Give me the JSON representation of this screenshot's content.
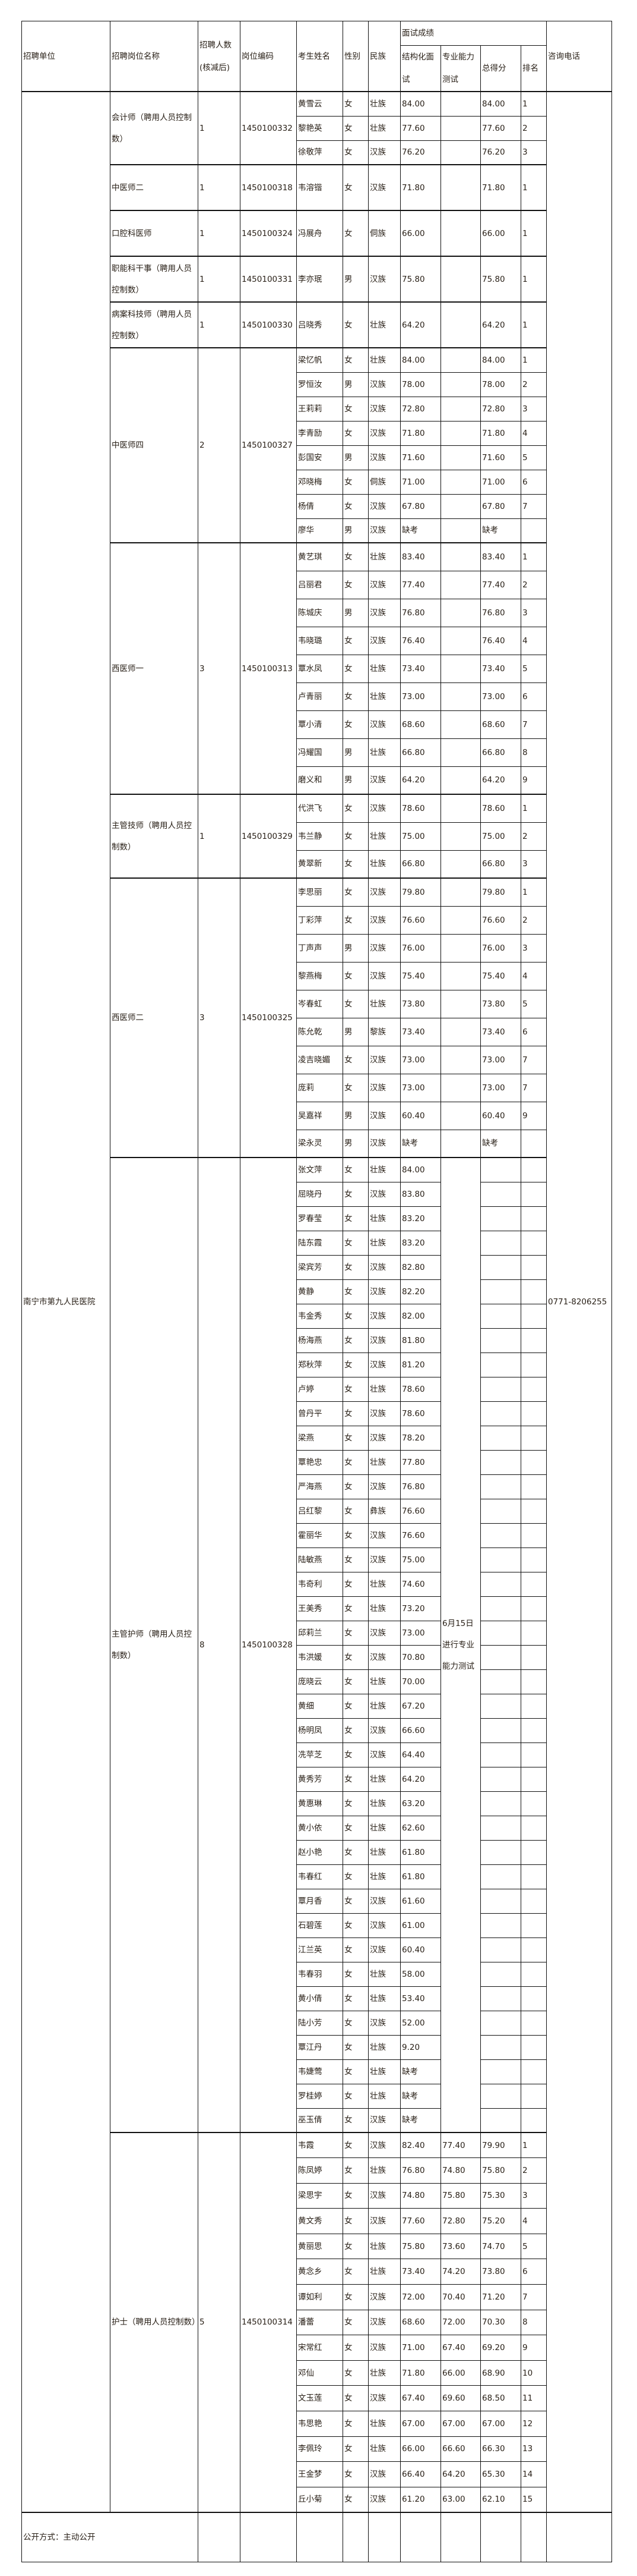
{
  "header": {
    "unit": "招聘单位",
    "position": "招聘岗位名称",
    "count": "招聘人数(核减后)",
    "code": "岗位编码",
    "name": "考生姓名",
    "gender": "性别",
    "ethnicity": "民族",
    "interview": "面试成绩",
    "structured": "结构化面试",
    "professional": "专业能力测试",
    "total": "总得分",
    "rank": "排名",
    "phone": "咨询电话"
  },
  "unit": "南宁市第九人民医院",
  "phone": "0771-8206255",
  "footer": "公开方式：主动公开",
  "groups": [
    {
      "position": "会计师（聘用人员控制数）",
      "count": "1",
      "code": "1450100332",
      "candidates": [
        [
          "黄雪云",
          "女",
          "壮族",
          "84.00",
          "",
          "84.00",
          "1"
        ],
        [
          "黎艳英",
          "女",
          "壮族",
          "77.60",
          "",
          "77.60",
          "2"
        ],
        [
          "徐敬萍",
          "女",
          "汉族",
          "76.20",
          "",
          "76.20",
          "3"
        ]
      ]
    },
    {
      "position": "中医师二",
      "count": "1",
      "code": "1450100318",
      "candidates": [
        [
          "韦溶锴",
          "女",
          "汉族",
          "71.80",
          "",
          "71.80",
          "1"
        ]
      ]
    },
    {
      "position": "口腔科医师",
      "count": "1",
      "code": "1450100324",
      "candidates": [
        [
          "冯展舟",
          "女",
          "侗族",
          "66.00",
          "",
          "66.00",
          "1"
        ]
      ]
    },
    {
      "position": "职能科干事（聘用人员控制数）",
      "count": "1",
      "code": "1450100331",
      "candidates": [
        [
          "李亦珉",
          "男",
          "汉族",
          "75.80",
          "",
          "75.80",
          "1"
        ]
      ]
    },
    {
      "position": "病案科技师（聘用人员控制数）",
      "count": "1",
      "code": "1450100330",
      "candidates": [
        [
          "吕晓秀",
          "女",
          "壮族",
          "64.20",
          "",
          "64.20",
          "1"
        ]
      ]
    },
    {
      "position": "中医师四",
      "count": "2",
      "code": "1450100327",
      "candidates": [
        [
          "梁忆帆",
          "女",
          "壮族",
          "84.00",
          "",
          "84.00",
          "1"
        ],
        [
          "罗恒汝",
          "男",
          "汉族",
          "78.00",
          "",
          "78.00",
          "2"
        ],
        [
          "王莉莉",
          "女",
          "汉族",
          "72.80",
          "",
          "72.80",
          "3"
        ],
        [
          "李青励",
          "女",
          "汉族",
          "71.80",
          "",
          "71.80",
          "4"
        ],
        [
          "彭国安",
          "男",
          "汉族",
          "71.60",
          "",
          "71.60",
          "5"
        ],
        [
          "邓晓梅",
          "女",
          "侗族",
          "71.00",
          "",
          "71.00",
          "6"
        ],
        [
          "杨倩",
          "女",
          "汉族",
          "67.80",
          "",
          "67.80",
          "7"
        ],
        [
          "廖华",
          "男",
          "汉族",
          "缺考",
          "",
          "缺考",
          ""
        ]
      ]
    },
    {
      "position": "西医师一",
      "count": "3",
      "code": "1450100313",
      "candidates": [
        [
          "黄艺琪",
          "女",
          "壮族",
          "83.40",
          "",
          "83.40",
          "1"
        ],
        [
          "吕丽君",
          "女",
          "汉族",
          "77.40",
          "",
          "77.40",
          "2"
        ],
        [
          "陈城庆",
          "男",
          "汉族",
          "76.80",
          "",
          "76.80",
          "3"
        ],
        [
          "韦晓璐",
          "女",
          "汉族",
          "76.40",
          "",
          "76.40",
          "4"
        ],
        [
          "覃水凤",
          "女",
          "壮族",
          "73.40",
          "",
          "73.40",
          "5"
        ],
        [
          "卢青丽",
          "女",
          "壮族",
          "73.00",
          "",
          "73.00",
          "6"
        ],
        [
          "覃小清",
          "女",
          "汉族",
          "68.60",
          "",
          "68.60",
          "7"
        ],
        [
          "冯耀国",
          "男",
          "壮族",
          "66.80",
          "",
          "66.80",
          "8"
        ],
        [
          "磨义和",
          "男",
          "汉族",
          "64.20",
          "",
          "64.20",
          "9"
        ]
      ]
    },
    {
      "position": "主管技师（聘用人员控制数）",
      "count": "1",
      "code": "1450100329",
      "candidates": [
        [
          "代洪飞",
          "女",
          "汉族",
          "78.60",
          "",
          "78.60",
          "1"
        ],
        [
          "韦兰静",
          "女",
          "壮族",
          "75.00",
          "",
          "75.00",
          "2"
        ],
        [
          "黄翠新",
          "女",
          "壮族",
          "66.80",
          "",
          "66.80",
          "3"
        ]
      ]
    },
    {
      "position": "西医师二",
      "count": "3",
      "code": "1450100325",
      "candidates": [
        [
          "李思丽",
          "女",
          "汉族",
          "79.80",
          "",
          "79.80",
          "1"
        ],
        [
          "丁彩萍",
          "女",
          "汉族",
          "76.60",
          "",
          "76.60",
          "2"
        ],
        [
          "丁声声",
          "男",
          "汉族",
          "76.00",
          "",
          "76.00",
          "3"
        ],
        [
          "黎燕梅",
          "女",
          "汉族",
          "75.40",
          "",
          "75.40",
          "4"
        ],
        [
          "岑春虹",
          "女",
          "壮族",
          "73.80",
          "",
          "73.80",
          "5"
        ],
        [
          "陈允乾",
          "男",
          "黎族",
          "73.40",
          "",
          "73.40",
          "6"
        ],
        [
          "凌吉晓媚",
          "女",
          "汉族",
          "73.00",
          "",
          "73.00",
          "7"
        ],
        [
          "庞莉",
          "女",
          "汉族",
          "73.00",
          "",
          "73.00",
          "7"
        ],
        [
          "吴嘉祥",
          "男",
          "汉族",
          "60.40",
          "",
          "60.40",
          "9"
        ],
        [
          "梁永灵",
          "男",
          "汉族",
          "缺考",
          "",
          "缺考",
          ""
        ]
      ]
    },
    {
      "position": "主管护师（聘用人员控制数）",
      "count": "8",
      "code": "1450100328",
      "professional_note": "6月15日进行专业能力测试",
      "candidates": [
        [
          "张文萍",
          "女",
          "壮族",
          "84.00"
        ],
        [
          "屈晓丹",
          "女",
          "汉族",
          "83.80"
        ],
        [
          "罗春莹",
          "女",
          "壮族",
          "83.20"
        ],
        [
          "陆东霞",
          "女",
          "壮族",
          "83.20"
        ],
        [
          "梁宾芳",
          "女",
          "汉族",
          "82.80"
        ],
        [
          "黄静",
          "女",
          "汉族",
          "82.20"
        ],
        [
          "韦金秀",
          "女",
          "汉族",
          "82.00"
        ],
        [
          "杨海燕",
          "女",
          "汉族",
          "81.80"
        ],
        [
          "郑秋萍",
          "女",
          "汉族",
          "81.20"
        ],
        [
          "卢婷",
          "女",
          "壮族",
          "78.60"
        ],
        [
          "曾丹平",
          "女",
          "汉族",
          "78.60"
        ],
        [
          "梁燕",
          "女",
          "汉族",
          "78.20"
        ],
        [
          "覃艳忠",
          "女",
          "壮族",
          "77.80"
        ],
        [
          "严海燕",
          "女",
          "汉族",
          "76.80"
        ],
        [
          "吕红黎",
          "女",
          "彝族",
          "76.60"
        ],
        [
          "霍丽华",
          "女",
          "汉族",
          "76.60"
        ],
        [
          "陆敏燕",
          "女",
          "汉族",
          "75.00"
        ],
        [
          "韦奇利",
          "女",
          "壮族",
          "74.60"
        ],
        [
          "王美秀",
          "女",
          "壮族",
          "73.20"
        ],
        [
          "邱莉兰",
          "女",
          "汉族",
          "73.00"
        ],
        [
          "韦洪媛",
          "女",
          "汉族",
          "70.80"
        ],
        [
          "庞晓云",
          "女",
          "壮族",
          "70.00"
        ],
        [
          "黄细",
          "女",
          "壮族",
          "67.20"
        ],
        [
          "杨明凤",
          "女",
          "汉族",
          "66.60"
        ],
        [
          "冼苹芝",
          "女",
          "汉族",
          "64.40"
        ],
        [
          "黄秀芳",
          "女",
          "壮族",
          "64.20"
        ],
        [
          "黄惠琳",
          "女",
          "壮族",
          "63.20"
        ],
        [
          "黄小依",
          "女",
          "壮族",
          "62.60"
        ],
        [
          "赵小艳",
          "女",
          "壮族",
          "61.80"
        ],
        [
          "韦春红",
          "女",
          "壮族",
          "61.80"
        ],
        [
          "覃月香",
          "女",
          "汉族",
          "61.60"
        ],
        [
          "石碧莲",
          "女",
          "汉族",
          "61.00"
        ],
        [
          "江兰英",
          "女",
          "汉族",
          "60.40"
        ],
        [
          "韦春羽",
          "女",
          "壮族",
          "58.00"
        ],
        [
          "黄小倩",
          "女",
          "壮族",
          "53.40"
        ],
        [
          "陆小芳",
          "女",
          "汉族",
          "52.00"
        ],
        [
          "覃江丹",
          "女",
          "壮族",
          "9.20"
        ],
        [
          "韦婕莺",
          "女",
          "壮族",
          "缺考"
        ],
        [
          "罗桂婷",
          "女",
          "壮族",
          "缺考"
        ],
        [
          "巫玉倩",
          "女",
          "汉族",
          "缺考"
        ]
      ]
    },
    {
      "position": "护士（聘用人员控制数）",
      "count": "5",
      "code": "1450100314",
      "candidates": [
        [
          "韦霞",
          "女",
          "汉族",
          "82.40",
          "77.40",
          "79.90",
          "1"
        ],
        [
          "陈凤婷",
          "女",
          "壮族",
          "76.80",
          "74.80",
          "75.80",
          "2"
        ],
        [
          "梁思宇",
          "女",
          "汉族",
          "74.80",
          "75.80",
          "75.30",
          "3"
        ],
        [
          "黄文秀",
          "女",
          "汉族",
          "77.60",
          "72.80",
          "75.20",
          "4"
        ],
        [
          "黄丽思",
          "女",
          "壮族",
          "75.80",
          "73.60",
          "74.70",
          "5"
        ],
        [
          "黄念乡",
          "女",
          "壮族",
          "73.40",
          "74.20",
          "73.80",
          "6"
        ],
        [
          "谭如利",
          "女",
          "汉族",
          "72.00",
          "70.40",
          "71.20",
          "7"
        ],
        [
          "潘蕾",
          "女",
          "汉族",
          "68.60",
          "72.00",
          "70.30",
          "8"
        ],
        [
          "宋常红",
          "女",
          "汉族",
          "71.00",
          "67.40",
          "69.20",
          "9"
        ],
        [
          "邓仙",
          "女",
          "壮族",
          "71.80",
          "66.00",
          "68.90",
          "10"
        ],
        [
          "文玉莲",
          "女",
          "汉族",
          "67.40",
          "69.60",
          "68.50",
          "11"
        ],
        [
          "韦思艳",
          "女",
          "壮族",
          "67.00",
          "67.00",
          "67.00",
          "12"
        ],
        [
          "李佩玲",
          "女",
          "壮族",
          "66.00",
          "66.60",
          "66.30",
          "13"
        ],
        [
          "王金梦",
          "女",
          "汉族",
          "66.40",
          "64.20",
          "65.30",
          "14"
        ],
        [
          "丘小菊",
          "女",
          "汉族",
          "61.20",
          "63.00",
          "62.10",
          "15"
        ]
      ]
    }
  ]
}
